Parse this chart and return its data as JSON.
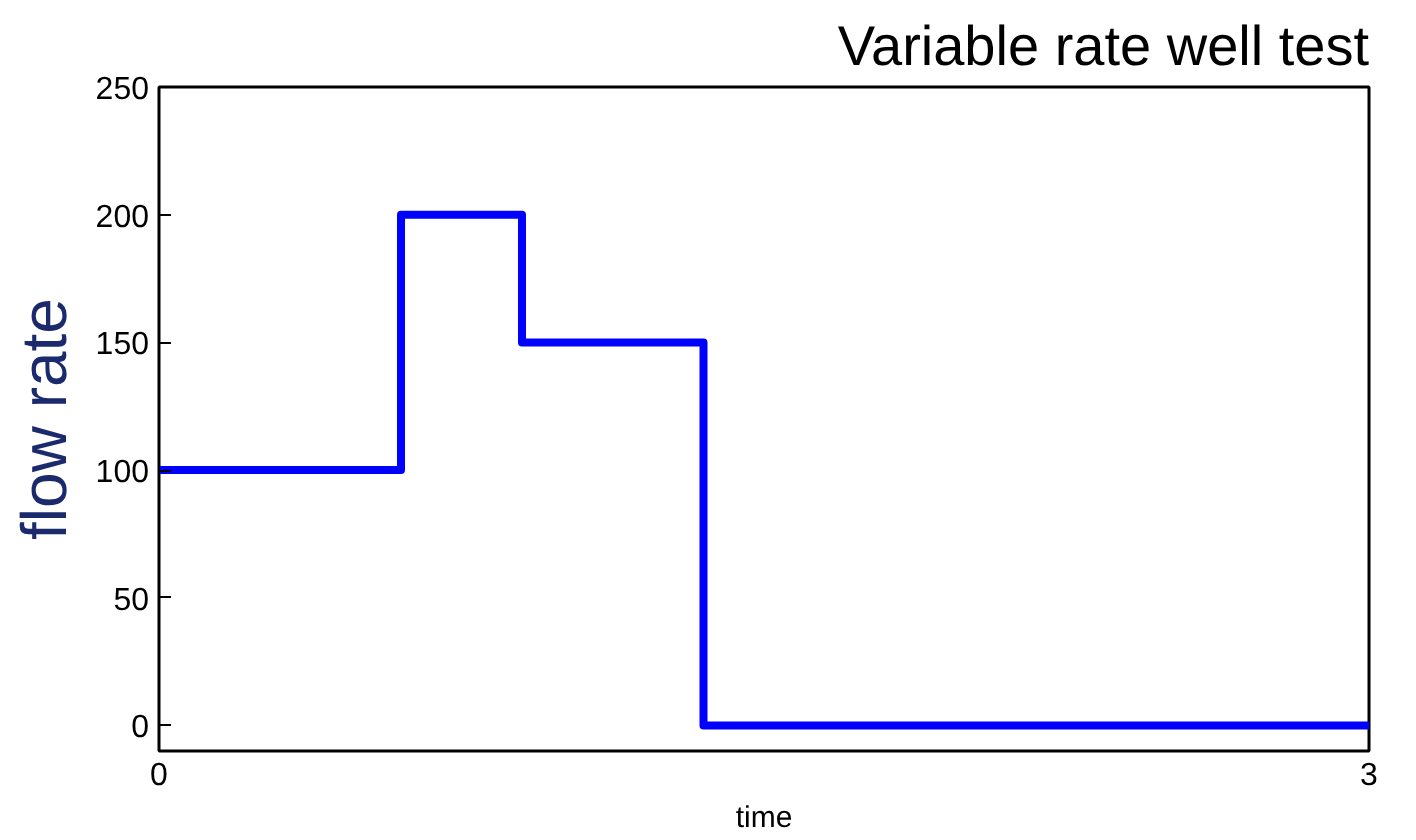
{
  "chart_data": {
    "type": "step",
    "title": "Variable rate well test",
    "xlabel": "time",
    "ylabel": "flow rate",
    "x": [
      0,
      0.6,
      0.9,
      1.35,
      3
    ],
    "series": [
      {
        "color": "#0000ff",
        "values": [
          100,
          200,
          150,
          0,
          0
        ]
      }
    ],
    "xlim": [
      0,
      3
    ],
    "xticks": [
      0,
      3
    ],
    "ylim": [
      -10,
      250
    ],
    "yticks": [
      0,
      50,
      100,
      150,
      200,
      250
    ],
    "grid": false
  }
}
